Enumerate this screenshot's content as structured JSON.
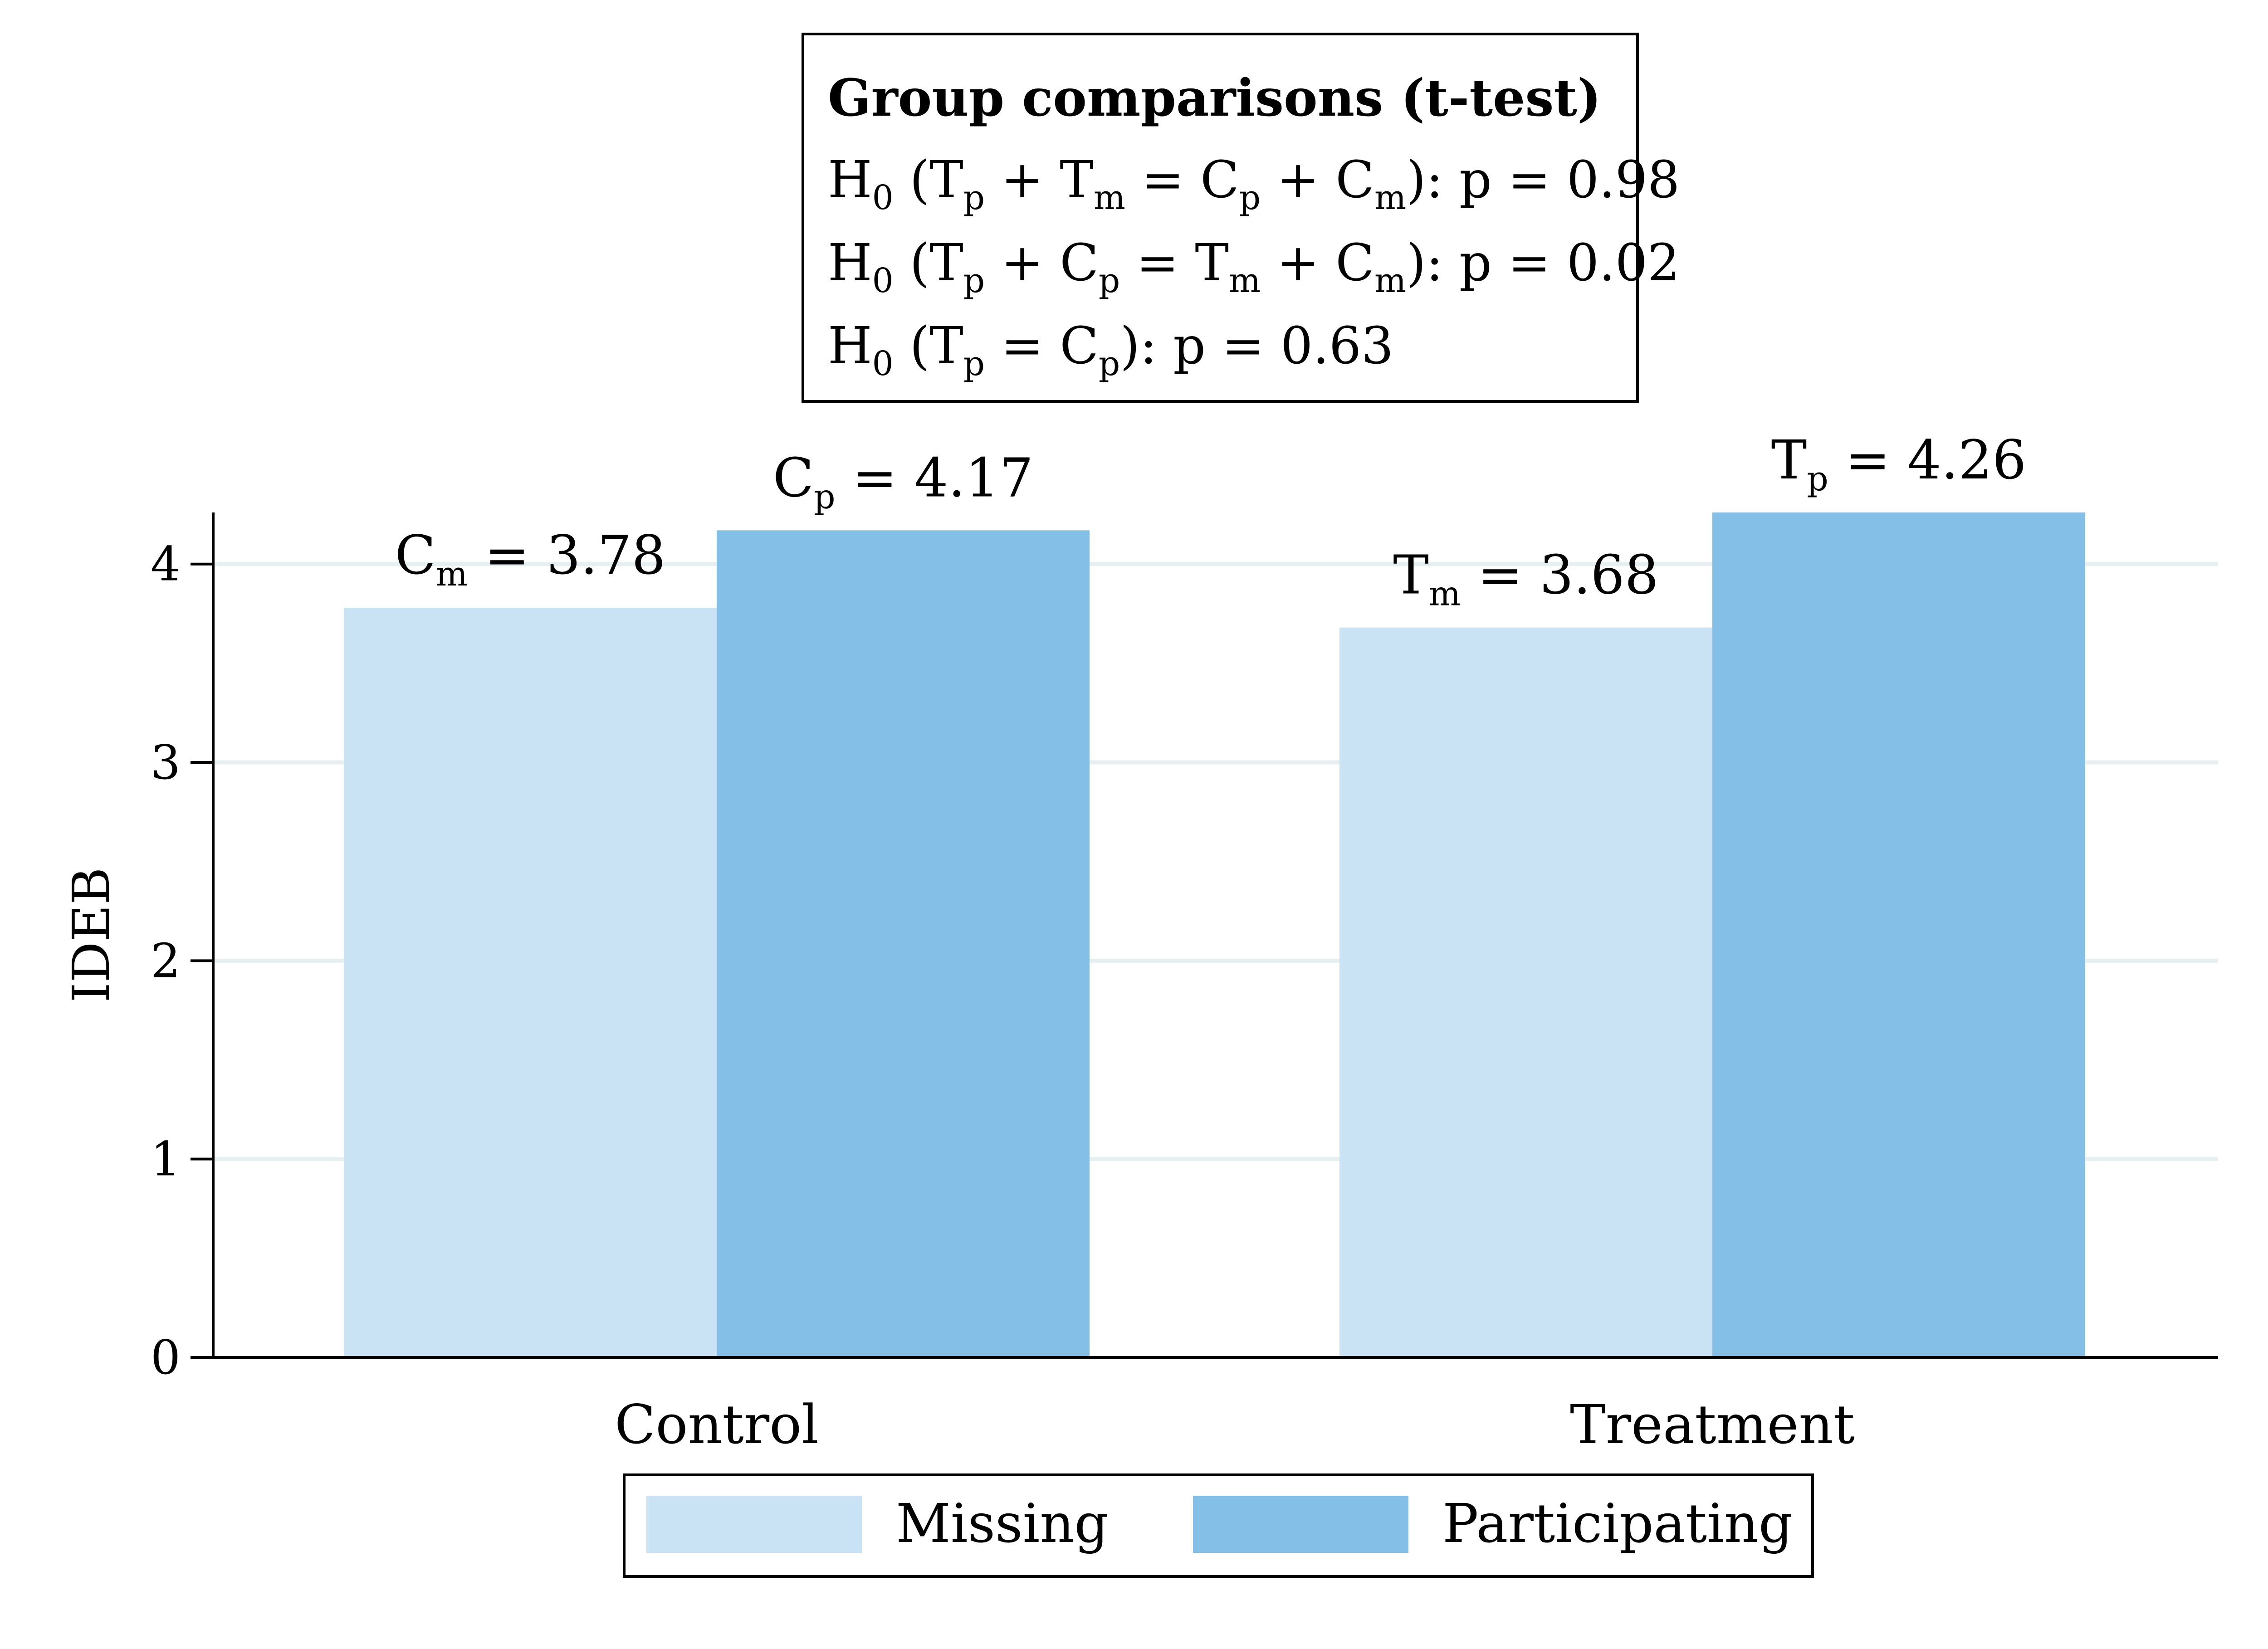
{
  "chart_data": {
    "type": "bar",
    "ylabel": "IDEB",
    "ylim": [
      0,
      4.26
    ],
    "yticks": [
      "0",
      "1",
      "2",
      "3",
      "4"
    ],
    "grid": true,
    "categories": [
      "Control",
      "Treatment"
    ],
    "series": [
      {
        "name": "Missing",
        "values": [
          3.78,
          3.68
        ]
      },
      {
        "name": "Participating",
        "values": [
          4.17,
          4.26
        ]
      }
    ],
    "bar_labels": [
      [
        {
          "base": "C",
          "sub": "m",
          "rest": " = 3.78"
        },
        {
          "base": "T",
          "sub": "m",
          "rest": " = 3.68"
        }
      ],
      [
        {
          "base": "C",
          "sub": "p",
          "rest": " = 4.17"
        },
        {
          "base": "T",
          "sub": "p",
          "rest": " = 4.26"
        }
      ]
    ],
    "annotation_box": {
      "title": "Group comparisons (t-test)",
      "lines": [
        [
          {
            "t": "H"
          },
          {
            "t": "0",
            "s": true
          },
          {
            "t": " (T"
          },
          {
            "t": "p",
            "s": true
          },
          {
            "t": " + T"
          },
          {
            "t": "m",
            "s": true
          },
          {
            "t": " = C"
          },
          {
            "t": "p",
            "s": true
          },
          {
            "t": " + C"
          },
          {
            "t": "m",
            "s": true
          },
          {
            "t": "): p = 0.98"
          }
        ],
        [
          {
            "t": "H"
          },
          {
            "t": "0",
            "s": true
          },
          {
            "t": " (T"
          },
          {
            "t": "p",
            "s": true
          },
          {
            "t": " + C"
          },
          {
            "t": "p",
            "s": true
          },
          {
            "t": " = T"
          },
          {
            "t": "m",
            "s": true
          },
          {
            "t": " + C"
          },
          {
            "t": "m",
            "s": true
          },
          {
            "t": "): p = 0.02"
          }
        ],
        [
          {
            "t": "H"
          },
          {
            "t": "0",
            "s": true
          },
          {
            "t": " (T"
          },
          {
            "t": "p",
            "s": true
          },
          {
            "t": " = C"
          },
          {
            "t": "p",
            "s": true
          },
          {
            "t": "): p = 0.63"
          }
        ]
      ]
    },
    "legend": {
      "position": "bottom"
    }
  },
  "colors": {
    "missing": "#c9e2f4",
    "participating": "#84bfe8",
    "grid": "#e6f0f0",
    "axis": "#000000"
  }
}
